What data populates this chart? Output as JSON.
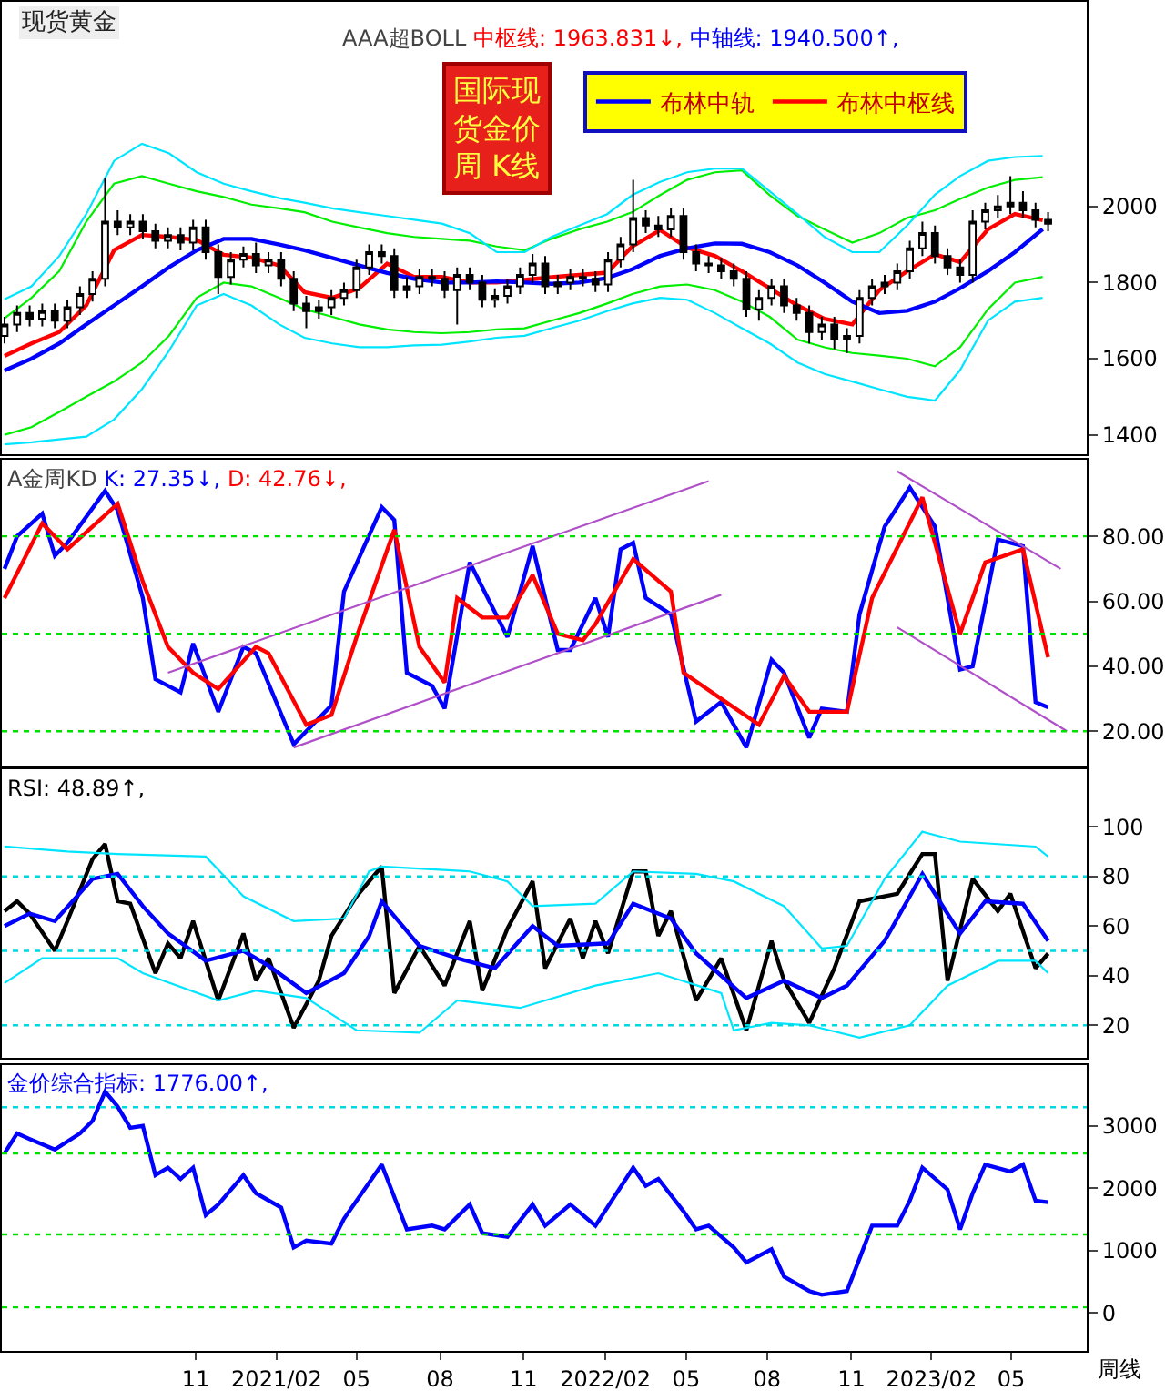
{
  "chart_data": [
    {
      "type": "candlestick",
      "title": "现货黄金",
      "subtitle": "AAA超BOLL",
      "annotations": [
        "中枢线: 1963.831↓,",
        "中轴线: 1940.500↑,"
      ],
      "color": "#000000",
      "legend": "top right",
      "tick_labels": "y",
      "x": [
        "2020-04-10",
        "2020-04-24",
        "2020-05-08",
        "2020-05-22",
        "2020-06-05",
        "2020-06-19",
        "2020-07-03",
        "2020-07-17",
        "2020-07-31",
        "2020-08-14",
        "2020-08-28",
        "2020-09-11",
        "2020-09-25",
        "2020-10-09",
        "2020-10-23",
        "2020-11-06",
        "2020-11-20",
        "2020-12-04",
        "2020-12-18",
        "2021-01-01",
        "2021-01-15",
        "2021-01-29",
        "2021-02-12",
        "2021-02-26",
        "2021-03-12",
        "2021-03-26",
        "2021-04-09",
        "2021-04-23",
        "2021-05-07",
        "2021-05-21",
        "2021-06-04",
        "2021-06-18",
        "2021-07-02",
        "2021-07-16",
        "2021-07-30",
        "2021-08-13",
        "2021-08-27",
        "2021-09-10",
        "2021-09-24",
        "2021-10-08",
        "2021-10-22",
        "2021-11-05",
        "2021-11-19",
        "2021-12-03",
        "2021-12-17",
        "2021-12-31",
        "2022-01-14",
        "2022-01-28",
        "2022-02-11",
        "2022-02-25",
        "2022-03-11",
        "2022-03-25",
        "2022-04-08",
        "2022-04-22",
        "2022-05-06",
        "2022-05-20",
        "2022-06-03",
        "2022-06-17",
        "2022-07-01",
        "2022-07-15",
        "2022-07-29",
        "2022-08-12",
        "2022-08-26",
        "2022-09-09",
        "2022-09-23",
        "2022-10-07",
        "2022-10-21",
        "2022-11-04",
        "2022-11-18",
        "2022-12-02",
        "2022-12-16",
        "2022-12-30",
        "2023-01-13",
        "2023-01-27",
        "2023-02-10",
        "2023-02-24",
        "2023-03-10",
        "2023-03-24",
        "2023-04-07",
        "2023-04-21",
        "2023-05-05",
        "2023-05-19",
        "2023-06-02",
        "2023-06-16"
      ],
      "ohlc": [
        [
          1660,
          1710,
          1640,
          1690
        ],
        [
          1690,
          1740,
          1670,
          1720
        ],
        [
          1720,
          1740,
          1685,
          1705
        ],
        [
          1705,
          1745,
          1685,
          1725
        ],
        [
          1725,
          1745,
          1680,
          1700
        ],
        [
          1700,
          1755,
          1680,
          1735
        ],
        [
          1735,
          1790,
          1715,
          1770
        ],
        [
          1770,
          1830,
          1750,
          1810
        ],
        [
          1810,
          2075,
          1790,
          1960
        ],
        [
          1960,
          1990,
          1925,
          1945
        ],
        [
          1945,
          1980,
          1925,
          1960
        ],
        [
          1960,
          1980,
          1915,
          1935
        ],
        [
          1935,
          1955,
          1890,
          1910
        ],
        [
          1910,
          1945,
          1890,
          1925
        ],
        [
          1925,
          1945,
          1885,
          1905
        ],
        [
          1905,
          1965,
          1885,
          1945
        ],
        [
          1945,
          1965,
          1860,
          1880
        ],
        [
          1880,
          1900,
          1770,
          1815
        ],
        [
          1815,
          1880,
          1795,
          1860
        ],
        [
          1860,
          1895,
          1840,
          1875
        ],
        [
          1875,
          1905,
          1825,
          1845
        ],
        [
          1845,
          1880,
          1825,
          1860
        ],
        [
          1860,
          1880,
          1790,
          1810
        ],
        [
          1810,
          1830,
          1725,
          1745
        ],
        [
          1745,
          1765,
          1680,
          1725
        ],
        [
          1725,
          1755,
          1705,
          1735
        ],
        [
          1735,
          1780,
          1715,
          1760
        ],
        [
          1760,
          1800,
          1740,
          1780
        ],
        [
          1780,
          1860,
          1760,
          1840
        ],
        [
          1840,
          1900,
          1820,
          1880
        ],
        [
          1880,
          1900,
          1850,
          1870
        ],
        [
          1870,
          1890,
          1760,
          1780
        ],
        [
          1780,
          1815,
          1760,
          1790
        ],
        [
          1790,
          1835,
          1770,
          1815
        ],
        [
          1815,
          1835,
          1790,
          1810
        ],
        [
          1810,
          1830,
          1760,
          1780
        ],
        [
          1780,
          1840,
          1690,
          1820
        ],
        [
          1820,
          1840,
          1780,
          1800
        ],
        [
          1800,
          1820,
          1735,
          1755
        ],
        [
          1755,
          1785,
          1735,
          1765
        ],
        [
          1765,
          1810,
          1745,
          1790
        ],
        [
          1790,
          1840,
          1770,
          1820
        ],
        [
          1820,
          1875,
          1800,
          1850
        ],
        [
          1850,
          1870,
          1770,
          1790
        ],
        [
          1790,
          1820,
          1770,
          1800
        ],
        [
          1800,
          1835,
          1780,
          1815
        ],
        [
          1815,
          1835,
          1790,
          1810
        ],
        [
          1810,
          1830,
          1775,
          1795
        ],
        [
          1795,
          1880,
          1775,
          1860
        ],
        [
          1860,
          1920,
          1840,
          1900
        ],
        [
          1900,
          2070,
          1880,
          1970
        ],
        [
          1970,
          1990,
          1930,
          1950
        ],
        [
          1950,
          1975,
          1920,
          1940
        ],
        [
          1940,
          1995,
          1920,
          1975
        ],
        [
          1975,
          1995,
          1860,
          1880
        ],
        [
          1880,
          1900,
          1830,
          1850
        ],
        [
          1850,
          1870,
          1825,
          1845
        ],
        [
          1845,
          1865,
          1810,
          1830
        ],
        [
          1830,
          1850,
          1790,
          1810
        ],
        [
          1810,
          1830,
          1710,
          1730
        ],
        [
          1730,
          1780,
          1700,
          1760
        ],
        [
          1760,
          1810,
          1740,
          1790
        ],
        [
          1790,
          1810,
          1720,
          1740
        ],
        [
          1740,
          1760,
          1700,
          1720
        ],
        [
          1720,
          1740,
          1640,
          1670
        ],
        [
          1670,
          1710,
          1650,
          1690
        ],
        [
          1690,
          1710,
          1625,
          1650
        ],
        [
          1650,
          1680,
          1615,
          1660
        ],
        [
          1660,
          1780,
          1640,
          1760
        ],
        [
          1760,
          1810,
          1740,
          1790
        ],
        [
          1790,
          1820,
          1770,
          1800
        ],
        [
          1800,
          1850,
          1780,
          1830
        ],
        [
          1830,
          1910,
          1810,
          1890
        ],
        [
          1890,
          1960,
          1870,
          1930
        ],
        [
          1930,
          1950,
          1850,
          1870
        ],
        [
          1870,
          1890,
          1820,
          1840
        ],
        [
          1840,
          1860,
          1800,
          1820
        ],
        [
          1820,
          1990,
          1800,
          1960
        ],
        [
          1960,
          2010,
          1940,
          1990
        ],
        [
          1990,
          2030,
          1970,
          2000
        ],
        [
          2000,
          2080,
          1980,
          2010
        ],
        [
          2010,
          2040,
          1970,
          1990
        ],
        [
          1990,
          2010,
          1945,
          1965
        ],
        [
          1965,
          1985,
          1935,
          1955
        ]
      ],
      "series": [
        {
          "type": "line",
          "name": "布林中枢线",
          "color": "#ff0000",
          "x": [
            "2020-04-10",
            "2020-05-10",
            "2020-06-10",
            "2020-07-10",
            "2020-08-10",
            "2020-09-10",
            "2020-10-10",
            "2020-11-10",
            "2020-12-10",
            "2021-01-10",
            "2021-02-10",
            "2021-03-10",
            "2021-04-10",
            "2021-05-10",
            "2021-06-10",
            "2021-07-10",
            "2021-08-10",
            "2021-09-10",
            "2021-10-10",
            "2021-11-10",
            "2021-12-10",
            "2022-01-10",
            "2022-02-10",
            "2022-03-10",
            "2022-04-10",
            "2022-05-10",
            "2022-06-10",
            "2022-07-10",
            "2022-08-10",
            "2022-09-10",
            "2022-10-10",
            "2022-11-10",
            "2022-12-10",
            "2023-01-10",
            "2023-02-10",
            "2023-03-10",
            "2023-04-10",
            "2023-05-10",
            "2023-06-10"
          ],
          "values": [
            1607,
            1640,
            1670,
            1740,
            1885,
            1925,
            1920,
            1912,
            1873,
            1866,
            1845,
            1775,
            1760,
            1785,
            1850,
            1815,
            1815,
            1800,
            1800,
            1807,
            1814,
            1820,
            1826,
            1895,
            1938,
            1892,
            1870,
            1830,
            1785,
            1740,
            1705,
            1690,
            1780,
            1830,
            1874,
            1854,
            1940,
            1980,
            1963.831
          ]
        },
        {
          "type": "line",
          "name": "布林中轨",
          "color": "#0000ff",
          "x": [
            "2020-04-10",
            "2020-05-10",
            "2020-06-10",
            "2020-07-10",
            "2020-08-10",
            "2020-09-10",
            "2020-10-10",
            "2020-11-10",
            "2020-12-10",
            "2021-01-10",
            "2021-02-10",
            "2021-03-10",
            "2021-04-10",
            "2021-05-10",
            "2021-06-10",
            "2021-07-10",
            "2021-08-10",
            "2021-09-10",
            "2021-10-10",
            "2021-11-10",
            "2021-12-10",
            "2022-01-10",
            "2022-02-10",
            "2022-03-10",
            "2022-04-10",
            "2022-05-10",
            "2022-06-10",
            "2022-07-10",
            "2022-08-10",
            "2022-09-10",
            "2022-10-10",
            "2022-11-10",
            "2022-12-10",
            "2023-01-10",
            "2023-02-10",
            "2023-03-10",
            "2023-04-10",
            "2023-05-10",
            "2023-06-10"
          ],
          "values": [
            1569,
            1600,
            1640,
            1690,
            1740,
            1790,
            1840,
            1885,
            1915,
            1915,
            1900,
            1885,
            1865,
            1845,
            1825,
            1810,
            1800,
            1800,
            1803,
            1800,
            1797,
            1800,
            1812,
            1835,
            1870,
            1890,
            1903,
            1902,
            1880,
            1845,
            1800,
            1750,
            1720,
            1726,
            1750,
            1785,
            1830,
            1880,
            1940.5
          ]
        },
        {
          "type": "line",
          "color": "#00ee00",
          "x": [
            "2020-04-10",
            "2020-05-10",
            "2020-06-10",
            "2020-07-10",
            "2020-08-10",
            "2020-09-10",
            "2020-10-10",
            "2020-11-10",
            "2020-12-10",
            "2021-01-10",
            "2021-02-10",
            "2021-03-10",
            "2021-04-10",
            "2021-05-10",
            "2021-06-10",
            "2021-07-10",
            "2021-08-10",
            "2021-09-10",
            "2021-10-10",
            "2021-11-10",
            "2021-12-10",
            "2022-01-10",
            "2022-02-10",
            "2022-03-10",
            "2022-04-10",
            "2022-05-10",
            "2022-06-10",
            "2022-07-10",
            "2022-08-10",
            "2022-09-10",
            "2022-10-10",
            "2022-11-10",
            "2022-12-10",
            "2023-01-10",
            "2023-02-10",
            "2023-03-10",
            "2023-04-10",
            "2023-05-10",
            "2023-06-10"
          ],
          "values": [
            1706,
            1760,
            1830,
            1960,
            2060,
            2080,
            2060,
            2040,
            2025,
            2005,
            1995,
            1985,
            1960,
            1945,
            1930,
            1920,
            1915,
            1910,
            1895,
            1885,
            1915,
            1940,
            1960,
            1985,
            2030,
            2070,
            2090,
            2095,
            2030,
            1975,
            1940,
            1905,
            1930,
            1970,
            1990,
            2020,
            2050,
            2070,
            2077
          ]
        },
        {
          "type": "line",
          "color": "#00ee00",
          "x": [
            "2020-04-10",
            "2020-05-10",
            "2020-06-10",
            "2020-07-10",
            "2020-08-10",
            "2020-09-10",
            "2020-10-10",
            "2020-11-10",
            "2020-12-10",
            "2021-01-10",
            "2021-02-10",
            "2021-03-10",
            "2021-04-10",
            "2021-05-10",
            "2021-06-10",
            "2021-07-10",
            "2021-08-10",
            "2021-09-10",
            "2021-10-10",
            "2021-11-10",
            "2021-12-10",
            "2022-01-10",
            "2022-02-10",
            "2022-03-10",
            "2022-04-10",
            "2022-05-10",
            "2022-06-10",
            "2022-07-10",
            "2022-08-10",
            "2022-09-10",
            "2022-10-10",
            "2022-11-10",
            "2022-12-10",
            "2023-01-10",
            "2023-02-10",
            "2023-03-10",
            "2023-04-10",
            "2023-05-10",
            "2023-06-10"
          ],
          "values": [
            1400,
            1420,
            1460,
            1500,
            1540,
            1590,
            1660,
            1760,
            1800,
            1790,
            1760,
            1730,
            1710,
            1690,
            1677,
            1670,
            1667,
            1670,
            1677,
            1680,
            1700,
            1720,
            1745,
            1770,
            1790,
            1795,
            1780,
            1750,
            1710,
            1650,
            1630,
            1615,
            1608,
            1600,
            1580,
            1630,
            1730,
            1800,
            1815
          ]
        },
        {
          "type": "line",
          "color": "#00e5ff",
          "x": [
            "2020-04-10",
            "2020-05-10",
            "2020-06-10",
            "2020-07-10",
            "2020-08-10",
            "2020-09-10",
            "2020-10-10",
            "2020-11-10",
            "2020-12-10",
            "2021-01-10",
            "2021-02-10",
            "2021-03-10",
            "2021-04-10",
            "2021-05-10",
            "2021-06-10",
            "2021-07-10",
            "2021-08-10",
            "2021-09-10",
            "2021-10-10",
            "2021-11-10",
            "2021-12-10",
            "2022-01-10",
            "2022-02-10",
            "2022-03-10",
            "2022-04-10",
            "2022-05-10",
            "2022-06-10",
            "2022-07-10",
            "2022-08-10",
            "2022-09-10",
            "2022-10-10",
            "2022-11-10",
            "2022-12-10",
            "2023-01-10",
            "2023-02-10",
            "2023-03-10",
            "2023-04-10",
            "2023-05-10",
            "2023-06-10"
          ],
          "values": [
            1756,
            1790,
            1870,
            1980,
            2120,
            2165,
            2140,
            2090,
            2060,
            2040,
            2022,
            2010,
            1995,
            1985,
            1975,
            1965,
            1955,
            1930,
            1880,
            1880,
            1920,
            1950,
            1980,
            2030,
            2065,
            2090,
            2100,
            2100,
            2040,
            1980,
            1920,
            1880,
            1880,
            1950,
            2031,
            2080,
            2120,
            2130,
            2133
          ]
        },
        {
          "type": "line",
          "color": "#00e5ff",
          "x": [
            "2020-04-10",
            "2020-05-10",
            "2020-06-10",
            "2020-07-10",
            "2020-08-10",
            "2020-09-10",
            "2020-10-10",
            "2020-11-10",
            "2020-12-10",
            "2021-01-10",
            "2021-02-10",
            "2021-03-10",
            "2021-04-10",
            "2021-05-10",
            "2021-06-10",
            "2021-07-10",
            "2021-08-10",
            "2021-09-10",
            "2021-10-10",
            "2021-11-10",
            "2021-12-10",
            "2022-01-10",
            "2022-02-10",
            "2022-03-10",
            "2022-04-10",
            "2022-05-10",
            "2022-06-10",
            "2022-07-10",
            "2022-08-10",
            "2022-09-10",
            "2022-10-10",
            "2022-11-10",
            "2022-12-10",
            "2023-01-10",
            "2023-02-10",
            "2023-03-10",
            "2023-04-10",
            "2023-05-10",
            "2023-06-10"
          ],
          "values": [
            1375,
            1380,
            1388,
            1395,
            1440,
            1520,
            1620,
            1740,
            1770,
            1740,
            1690,
            1655,
            1640,
            1630,
            1630,
            1635,
            1637,
            1645,
            1655,
            1660,
            1680,
            1700,
            1725,
            1745,
            1760,
            1755,
            1720,
            1680,
            1640,
            1590,
            1560,
            1540,
            1520,
            1500,
            1490,
            1570,
            1700,
            1750,
            1760
          ]
        }
      ],
      "xlim": [
        "2020-04-07",
        "2023-07-29"
      ],
      "ylim": [
        1348,
        2538
      ],
      "yticks": [
        1400,
        1600,
        1800,
        2000
      ]
    },
    {
      "type": "other",
      "title": "国际现货金价周 K线"
    },
    {
      "type": "line",
      "title": "A金周KD",
      "annotations": [
        "K: 27.35↓,",
        "D: 42.76↓,"
      ],
      "tick_labels": "y",
      "series": [
        {
          "color": "#0000ff",
          "x": [
            "2020-04-10",
            "2020-04-24",
            "2020-05-22",
            "2020-06-05",
            "2020-06-19",
            "2020-07-31",
            "2020-08-14",
            "2020-09-11",
            "2020-09-25",
            "2020-10-23",
            "2020-11-06",
            "2020-12-04",
            "2021-01-01",
            "2021-01-15",
            "2021-02-26",
            "2021-04-09",
            "2021-04-23",
            "2021-06-04",
            "2021-06-18",
            "2021-07-02",
            "2021-07-30",
            "2021-08-13",
            "2021-09-10",
            "2021-10-22",
            "2021-11-19",
            "2021-12-17",
            "2021-12-31",
            "2022-01-28",
            "2022-02-11",
            "2022-02-25",
            "2022-03-11",
            "2022-03-25",
            "2022-04-22",
            "2022-05-20",
            "2022-06-17",
            "2022-07-15",
            "2022-08-12",
            "2022-08-26",
            "2022-09-23",
            "2022-10-07",
            "2022-11-04",
            "2022-11-18",
            "2022-12-16",
            "2023-01-13",
            "2023-02-10",
            "2023-03-10",
            "2023-03-24",
            "2023-04-21",
            "2023-05-19",
            "2023-06-02",
            "2023-06-16"
          ],
          "values": [
            70,
            80,
            87,
            74,
            78,
            94,
            88,
            61,
            36,
            32,
            47,
            26,
            46,
            44,
            16,
            28,
            63,
            89,
            85,
            38,
            34,
            27,
            72,
            49,
            77,
            45,
            45,
            61,
            49,
            76,
            78,
            61,
            56,
            23,
            29,
            15,
            42,
            38,
            18,
            27,
            26,
            56,
            83,
            95,
            83,
            39,
            40,
            79,
            77,
            29,
            27.35
          ]
        },
        {
          "color": "#ff0000",
          "x": [
            "2020-04-10",
            "2020-05-22",
            "2020-06-19",
            "2020-08-14",
            "2020-09-11",
            "2020-10-09",
            "2020-11-06",
            "2020-12-04",
            "2021-01-15",
            "2021-01-29",
            "2021-03-12",
            "2021-04-09",
            "2021-05-07",
            "2021-06-18",
            "2021-07-16",
            "2021-08-13",
            "2021-08-27",
            "2021-09-24",
            "2021-10-22",
            "2021-11-19",
            "2021-12-17",
            "2022-01-14",
            "2022-01-28",
            "2022-03-11",
            "2022-04-22",
            "2022-05-06",
            "2022-06-17",
            "2022-07-29",
            "2022-08-26",
            "2022-09-23",
            "2022-11-04",
            "2022-12-02",
            "2023-01-27",
            "2023-03-10",
            "2023-04-07",
            "2023-05-19",
            "2023-06-16"
          ],
          "values": [
            61,
            84,
            76,
            90,
            66,
            46,
            38,
            33,
            46,
            44,
            22,
            25,
            49,
            82,
            46,
            35,
            61,
            55,
            55,
            68,
            50,
            48,
            53,
            73,
            63,
            38,
            30,
            22,
            37,
            26,
            26,
            61,
            92,
            50,
            72,
            76,
            42.76
          ]
        },
        {
          "color": "#b050c8",
          "x": [
            "2020-10-09",
            "2022-06-03"
          ],
          "values": [
            38,
            97
          ]
        },
        {
          "color": "#b050c8",
          "x": [
            "2021-02-26",
            "2022-06-17"
          ],
          "values": [
            15,
            62
          ]
        },
        {
          "color": "#b050c8",
          "x": [
            "2022-12-30",
            "2023-06-30"
          ],
          "values": [
            100,
            70
          ]
        },
        {
          "color": "#b050c8",
          "x": [
            "2022-12-30",
            "2023-07-07"
          ],
          "values": [
            52,
            20
          ]
        }
      ],
      "ref_lines": [
        {
          "axis": "y",
          "value": 80,
          "color": "#00e000",
          "line_style": "dotted"
        },
        {
          "axis": "y",
          "value": 50,
          "color": "#00e000",
          "line_style": "dotted"
        },
        {
          "axis": "y",
          "value": 20,
          "color": "#00e000",
          "line_style": "dotted"
        }
      ],
      "xlim": [
        "2020-04-07",
        "2023-07-29"
      ],
      "ylim": [
        9.3,
        103.5
      ],
      "yticks": [
        {
          "value": 20,
          "label": "20.00"
        },
        {
          "value": 40,
          "label": "40.00"
        },
        {
          "value": 60,
          "label": "60.00"
        },
        {
          "value": 80,
          "label": "80.00"
        }
      ]
    },
    {
      "type": "line",
      "annotations": [
        "RSI: 48.89↑,"
      ],
      "tick_labels": "y",
      "series": [
        {
          "color": "#000000",
          "x": [
            "2020-04-10",
            "2020-04-24",
            "2020-05-08",
            "2020-06-05",
            "2020-06-19",
            "2020-07-17",
            "2020-07-31",
            "2020-08-14",
            "2020-08-28",
            "2020-09-25",
            "2020-10-09",
            "2020-10-23",
            "2020-11-06",
            "2020-12-04",
            "2021-01-01",
            "2021-01-15",
            "2021-01-29",
            "2021-02-26",
            "2021-03-26",
            "2021-04-09",
            "2021-05-07",
            "2021-06-04",
            "2021-06-18",
            "2021-07-16",
            "2021-08-13",
            "2021-09-10",
            "2021-09-24",
            "2021-10-22",
            "2021-11-19",
            "2021-12-03",
            "2021-12-31",
            "2022-01-14",
            "2022-01-28",
            "2022-02-11",
            "2022-03-11",
            "2022-03-25",
            "2022-04-08",
            "2022-04-22",
            "2022-05-20",
            "2022-06-17",
            "2022-07-15",
            "2022-08-12",
            "2022-08-26",
            "2022-09-23",
            "2022-10-21",
            "2022-11-18",
            "2022-12-30",
            "2023-01-27",
            "2023-02-10",
            "2023-02-24",
            "2023-03-24",
            "2023-04-21",
            "2023-05-05",
            "2023-06-02",
            "2023-06-16"
          ],
          "values": [
            66,
            70,
            65,
            50,
            62,
            87,
            93,
            70,
            69,
            41,
            53,
            47,
            62,
            30,
            57,
            38,
            47,
            19,
            38,
            56,
            72,
            84,
            33,
            52,
            36,
            62,
            34,
            59,
            78,
            43,
            63,
            47,
            62,
            49,
            82,
            82,
            56,
            66,
            30,
            47,
            18,
            54,
            38,
            21,
            43,
            70,
            73,
            89,
            89,
            38,
            79,
            66,
            73,
            43,
            48.89
          ]
        },
        {
          "color": "#0000ff",
          "x": [
            "2020-04-10",
            "2020-05-08",
            "2020-06-05",
            "2020-07-17",
            "2020-08-14",
            "2020-09-11",
            "2020-10-09",
            "2020-11-20",
            "2021-01-01",
            "2021-01-29",
            "2021-03-12",
            "2021-04-23",
            "2021-05-21",
            "2021-06-04",
            "2021-07-16",
            "2021-08-27",
            "2021-10-08",
            "2021-11-19",
            "2021-12-17",
            "2022-02-11",
            "2022-03-11",
            "2022-04-22",
            "2022-05-20",
            "2022-07-15",
            "2022-08-26",
            "2022-10-07",
            "2022-11-04",
            "2022-12-16",
            "2023-01-27",
            "2023-03-10",
            "2023-04-07",
            "2023-05-19",
            "2023-06-16"
          ],
          "values": [
            60,
            65,
            62,
            79,
            81,
            68,
            57,
            46,
            50,
            44,
            33,
            41,
            56,
            70,
            52,
            47,
            43,
            60,
            52,
            53,
            69,
            63,
            49,
            31,
            38,
            31,
            36,
            54,
            81,
            57,
            70,
            69,
            54
          ]
        },
        {
          "color": "#00e5ff",
          "x": [
            "2020-04-10",
            "2020-06-19",
            "2020-08-14",
            "2020-11-20",
            "2021-01-01",
            "2021-02-26",
            "2021-04-23",
            "2021-05-21",
            "2021-06-04",
            "2021-09-10",
            "2021-10-22",
            "2021-11-19",
            "2022-01-28",
            "2022-03-11",
            "2022-05-20",
            "2022-07-01",
            "2022-08-26",
            "2022-10-07",
            "2022-11-04",
            "2022-12-16",
            "2023-01-27",
            "2023-03-10",
            "2023-06-02",
            "2023-06-16"
          ],
          "values": [
            92,
            90,
            89,
            88,
            72,
            62,
            63,
            82,
            84,
            82,
            78,
            68,
            69,
            82,
            81,
            78,
            68,
            51,
            52,
            79,
            98,
            94,
            92,
            88
          ]
        },
        {
          "color": "#00e5ff",
          "x": [
            "2020-04-10",
            "2020-05-22",
            "2020-08-14",
            "2020-09-11",
            "2020-12-04",
            "2021-01-15",
            "2021-03-12",
            "2021-05-07",
            "2021-07-16",
            "2021-08-27",
            "2021-11-05",
            "2022-01-28",
            "2022-04-08",
            "2022-06-17",
            "2022-07-01",
            "2022-08-12",
            "2022-09-23",
            "2022-11-18",
            "2023-01-13",
            "2023-02-24",
            "2023-04-21",
            "2023-06-02",
            "2023-06-16"
          ],
          "values": [
            37,
            47,
            47,
            41,
            30,
            34,
            31,
            18,
            17,
            30,
            27,
            36,
            41,
            33,
            18,
            21,
            20,
            15,
            20,
            36,
            46,
            46,
            41
          ]
        }
      ],
      "ref_lines": [
        {
          "axis": "y",
          "value": 80,
          "color": "#00d8e0",
          "line_style": "dotted"
        },
        {
          "axis": "y",
          "value": 50,
          "color": "#00d8e0",
          "line_style": "dotted"
        },
        {
          "axis": "y",
          "value": 20,
          "color": "#00d8e0",
          "line_style": "dotted"
        }
      ],
      "xlim": [
        "2020-04-07",
        "2023-07-29"
      ],
      "ylim": [
        7,
        123
      ],
      "yticks": [
        20,
        40,
        60,
        80,
        100
      ]
    },
    {
      "type": "line",
      "annotations": [
        "金价综合指标: 1776.00↑,"
      ],
      "xlabel": "周线",
      "series": [
        {
          "color": "#0000ff",
          "x": [
            "2020-04-10",
            "2020-04-24",
            "2020-05-08",
            "2020-06-05",
            "2020-07-03",
            "2020-07-17",
            "2020-07-31",
            "2020-08-14",
            "2020-08-28",
            "2020-09-11",
            "2020-09-25",
            "2020-10-09",
            "2020-10-23",
            "2020-11-06",
            "2020-11-20",
            "2020-12-04",
            "2021-01-01",
            "2021-01-15",
            "2021-02-12",
            "2021-02-26",
            "2021-03-12",
            "2021-04-09",
            "2021-04-23",
            "2021-05-07",
            "2021-06-04",
            "2021-07-02",
            "2021-07-30",
            "2021-08-13",
            "2021-09-10",
            "2021-09-24",
            "2021-10-22",
            "2021-11-19",
            "2021-12-03",
            "2021-12-31",
            "2022-01-28",
            "2022-03-11",
            "2022-03-25",
            "2022-04-08",
            "2022-05-06",
            "2022-05-20",
            "2022-06-03",
            "2022-07-01",
            "2022-07-15",
            "2022-08-12",
            "2022-08-26",
            "2022-09-23",
            "2022-10-07",
            "2022-11-04",
            "2022-11-18",
            "2022-12-02",
            "2022-12-30",
            "2023-01-13",
            "2023-01-27",
            "2023-02-24",
            "2023-03-10",
            "2023-03-24",
            "2023-04-07",
            "2023-05-05",
            "2023-05-19",
            "2023-06-02",
            "2023-06-16"
          ],
          "values": [
            2560,
            2880,
            2790,
            2620,
            2880,
            3080,
            3550,
            3310,
            2970,
            3000,
            2210,
            2330,
            2150,
            2330,
            1570,
            1740,
            2210,
            1920,
            1690,
            1050,
            1160,
            1110,
            1510,
            1800,
            2380,
            1340,
            1400,
            1340,
            1740,
            1280,
            1220,
            1740,
            1400,
            1740,
            1400,
            2330,
            2040,
            2150,
            1630,
            1340,
            1400,
            1050,
            810,
            1020,
            580,
            350,
            290,
            350,
            870,
            1400,
            1400,
            1800,
            2330,
            1980,
            1340,
            1920,
            2380,
            2270,
            2380,
            1800,
            1776
          ]
        }
      ],
      "ref_lines": [
        {
          "axis": "y",
          "value": 3300,
          "color": "#00d8e0",
          "line_style": "dotted"
        },
        {
          "axis": "y",
          "value": 2560,
          "color": "#00e000",
          "line_style": "dotted"
        },
        {
          "axis": "y",
          "value": 1260,
          "color": "#00e000",
          "line_style": "dotted"
        },
        {
          "axis": "y",
          "value": 90,
          "color": "#00e000",
          "line_style": "dotted"
        }
      ],
      "xlim": [
        "2020-04-07",
        "2023-07-29"
      ],
      "ylim": [
        -610,
        3980
      ],
      "yticks": [
        0,
        1000,
        2000,
        3000
      ],
      "xticks": [
        {
          "value": "2020-11-09",
          "label": "11"
        },
        {
          "value": "2021-02-07",
          "label": "2021/02"
        },
        {
          "value": "2021-05-07",
          "label": "05"
        },
        {
          "value": "2021-08-08",
          "label": "08"
        },
        {
          "value": "2021-11-09",
          "label": "11"
        },
        {
          "value": "2022-02-08",
          "label": "2022/02"
        },
        {
          "value": "2022-05-09",
          "label": "05"
        },
        {
          "value": "2022-08-07",
          "label": "08"
        },
        {
          "value": "2022-11-09",
          "label": "11"
        },
        {
          "value": "2023-02-06",
          "label": "2023/02"
        },
        {
          "value": "2023-05-06",
          "label": "05"
        }
      ]
    }
  ]
}
